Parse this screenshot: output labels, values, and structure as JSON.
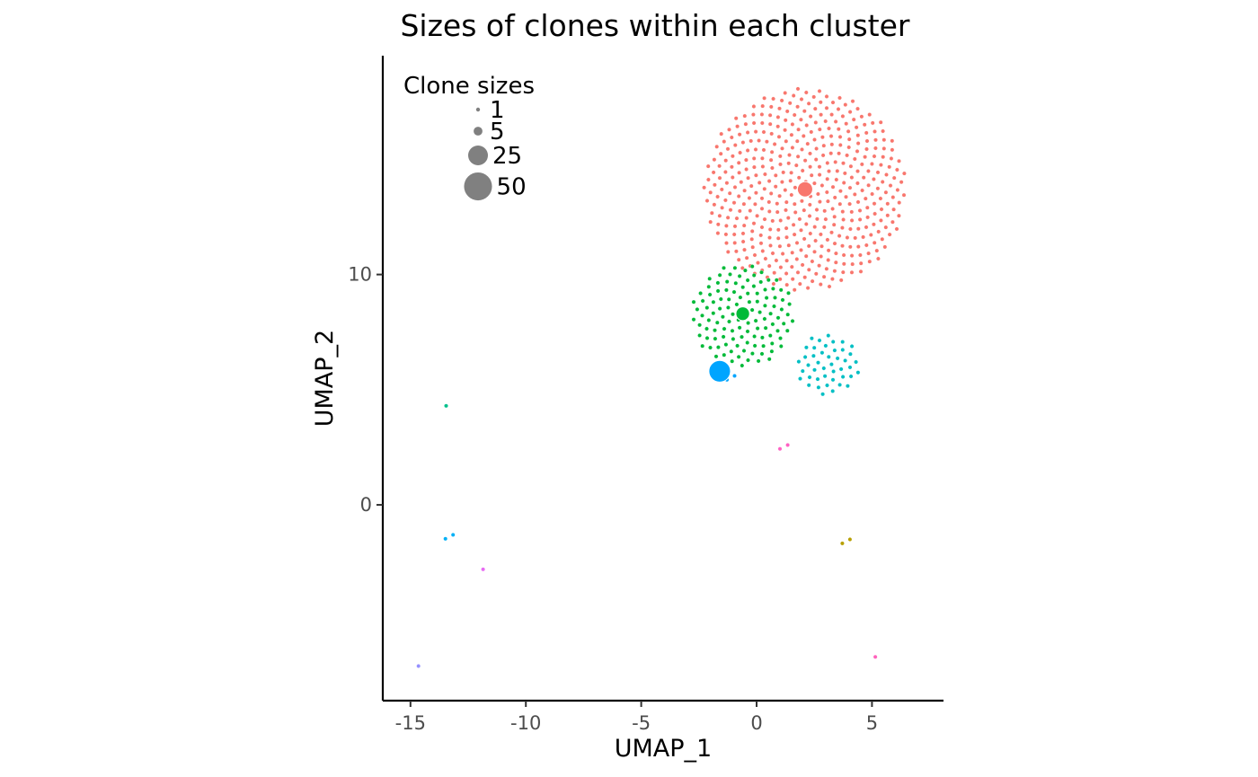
{
  "chart_data": {
    "type": "scatter",
    "title": "Sizes of clones within each cluster",
    "xlabel": "UMAP_1",
    "ylabel": "UMAP_2",
    "xlim": [
      -16.2,
      8.1
    ],
    "ylim": [
      -8.5,
      19.5
    ],
    "x_ticks": [
      -15,
      -10,
      -5,
      0,
      5
    ],
    "y_ticks": [
      0,
      10
    ],
    "grid": false,
    "legend": {
      "title": "Clone sizes",
      "placement": "top-left",
      "color": "#808080",
      "entries": [
        {
          "label": "1",
          "size": 1
        },
        {
          "label": "5",
          "size": 5
        },
        {
          "label": "25",
          "size": 25
        },
        {
          "label": "50",
          "size": 50
        }
      ]
    },
    "point_radius_of_size_1": 2.2,
    "clusters": [
      {
        "color": "#F8766D",
        "center": [
          2.1,
          13.7
        ],
        "packed_radius": 4.5,
        "big_clone": {
          "x": 2.1,
          "y": 13.7,
          "size": 15
        }
      },
      {
        "color": "#00BA38",
        "center": [
          -0.6,
          8.2
        ],
        "packed_radius": 2.3,
        "big_clone": {
          "x": -0.6,
          "y": 8.3,
          "size": 12
        }
      },
      {
        "color": "#00BFC4",
        "center": [
          3.1,
          6.1
        ],
        "packed_radius": 1.4,
        "big_clone": null
      },
      {
        "color": "#00A5FF",
        "center": [
          -1.1,
          5.6
        ],
        "packed_radius": 0.3,
        "big_clone": {
          "x": -1.6,
          "y": 5.8,
          "size": 30
        }
      },
      {
        "color": "#FF61C3",
        "center": [
          1.2,
          2.6
        ],
        "packed_radius": 0.32,
        "big_clone": null
      },
      {
        "color": "#B79F00",
        "center": [
          3.9,
          -1.5
        ],
        "packed_radius": 0.32,
        "big_clone": null
      },
      {
        "color": "#00C08B",
        "center": [
          -13.6,
          4.3
        ],
        "packed_radius": 0.22,
        "big_clone": null
      },
      {
        "color": "#00B0F6",
        "center": [
          -13.3,
          -1.3
        ],
        "packed_radius": 0.28,
        "big_clone": null
      },
      {
        "color": "#E76BF3",
        "center": [
          -12.0,
          -2.8
        ],
        "packed_radius": 0.08,
        "big_clone": null
      },
      {
        "color": "#9590FF",
        "center": [
          -14.8,
          -7.0
        ],
        "packed_radius": 0.22,
        "big_clone": null
      },
      {
        "color": "#FF62BC",
        "center": [
          5.0,
          -6.6
        ],
        "packed_radius": 0.0,
        "big_clone": null
      }
    ]
  }
}
